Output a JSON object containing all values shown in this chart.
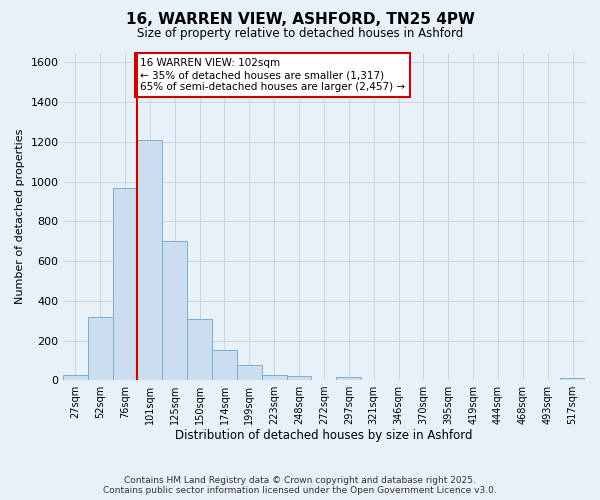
{
  "title_line1": "16, WARREN VIEW, ASHFORD, TN25 4PW",
  "title_line2": "Size of property relative to detached houses in Ashford",
  "xlabel": "Distribution of detached houses by size in Ashford",
  "ylabel": "Number of detached properties",
  "categories": [
    "27sqm",
    "52sqm",
    "76sqm",
    "101sqm",
    "125sqm",
    "150sqm",
    "174sqm",
    "199sqm",
    "223sqm",
    "248sqm",
    "272sqm",
    "297sqm",
    "321sqm",
    "346sqm",
    "370sqm",
    "395sqm",
    "419sqm",
    "444sqm",
    "468sqm",
    "493sqm",
    "517sqm"
  ],
  "values": [
    25,
    320,
    970,
    1210,
    700,
    310,
    150,
    75,
    25,
    20,
    0,
    15,
    0,
    0,
    0,
    0,
    0,
    0,
    0,
    0,
    10
  ],
  "bar_color": "#ccddf0",
  "bar_edge_color": "#7aafd4",
  "vline_x_index": 3,
  "vline_color": "#cc0000",
  "annotation_text": "16 WARREN VIEW: 102sqm\n← 35% of detached houses are smaller (1,317)\n65% of semi-detached houses are larger (2,457) →",
  "annotation_box_color": "#ffffff",
  "annotation_box_edge": "#cc0000",
  "ylim": [
    0,
    1650
  ],
  "yticks": [
    0,
    200,
    400,
    600,
    800,
    1000,
    1200,
    1400,
    1600
  ],
  "grid_color": "#c8d8e8",
  "background_color": "#e8f0f8",
  "footer_line1": "Contains HM Land Registry data © Crown copyright and database right 2025.",
  "footer_line2": "Contains public sector information licensed under the Open Government Licence v3.0."
}
